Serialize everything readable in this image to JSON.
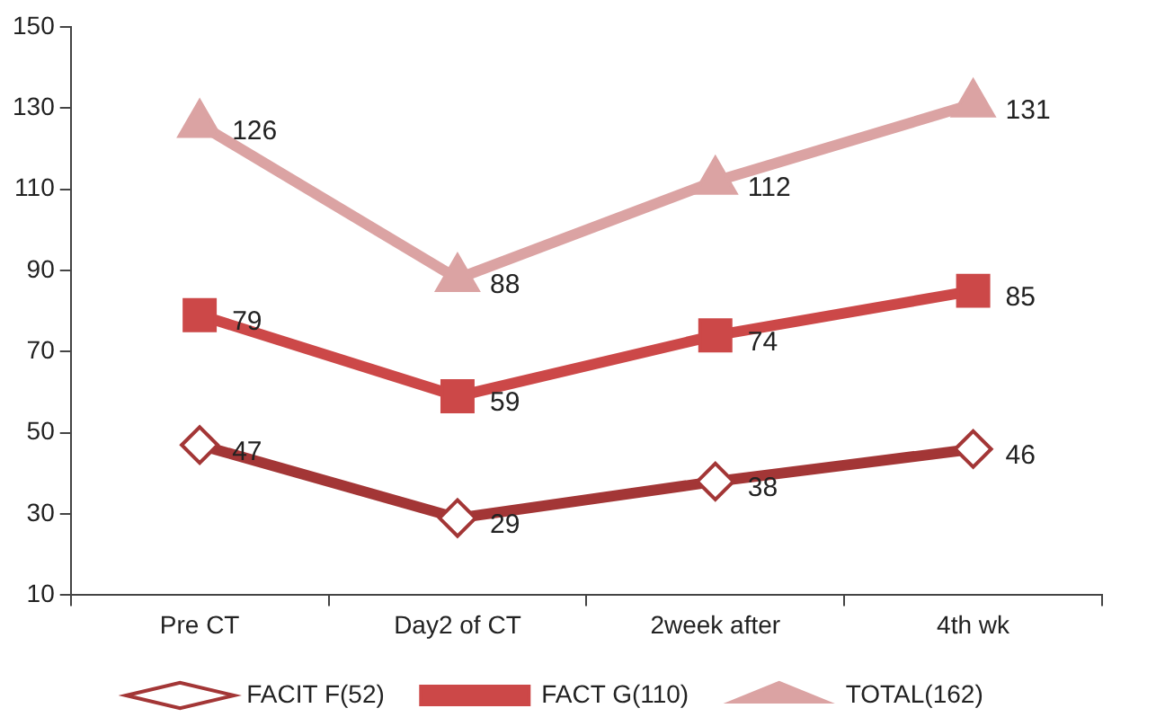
{
  "chart_data": {
    "type": "line",
    "categories": [
      "Pre CT",
      "Day2 of CT",
      "2week after",
      "4th wk"
    ],
    "series": [
      {
        "name": "FACIT F(52)",
        "color": "#a33636",
        "marker": "diamond",
        "values": [
          47,
          29,
          38,
          46
        ]
      },
      {
        "name": "FACT G(110)",
        "color": "#cc4848",
        "marker": "square",
        "values": [
          79,
          59,
          74,
          85
        ]
      },
      {
        "name": "TOTAL(162)",
        "color": "#dba3a3",
        "marker": "triangle",
        "values": [
          126,
          88,
          112,
          131
        ]
      }
    ],
    "ylim": [
      10,
      150
    ],
    "yticks": [
      10,
      30,
      50,
      70,
      90,
      110,
      130,
      150
    ],
    "grid": false,
    "legend": "bottom",
    "data_labels": true
  }
}
